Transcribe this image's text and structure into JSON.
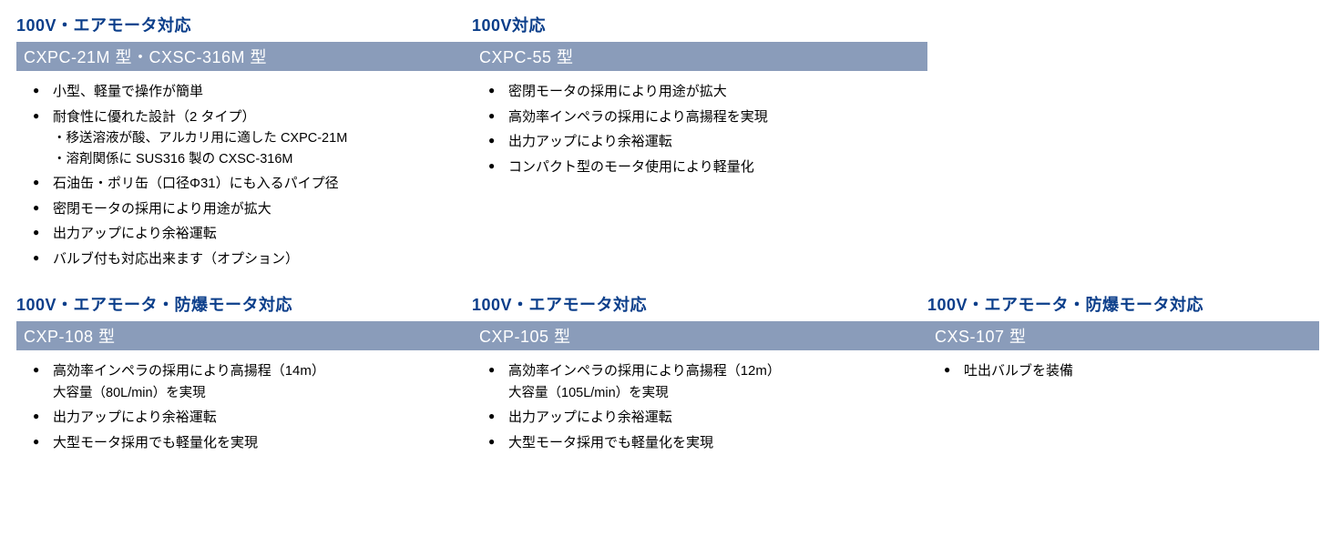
{
  "colors": {
    "heading": "#0b3e8a",
    "bar_bg": "#8a9cba",
    "bar_text": "#ffffff",
    "body_text": "#000000",
    "background": "#ffffff"
  },
  "row1": {
    "col1": {
      "heading": "100V・エアモータ対応",
      "model": "CXPC-21M 型・CXSC-316M 型",
      "items": [
        {
          "text": "小型、軽量で操作が簡単"
        },
        {
          "text": "耐食性に優れた設計（2 タイプ）",
          "sub1": "・移送溶液が酸、アルカリ用に適した CXPC-21M",
          "sub2": "・溶剤関係に SUS316 製の CXSC-316M"
        },
        {
          "text": "石油缶・ポリ缶（口径Φ31）にも入るパイプ径"
        },
        {
          "text": "密閉モータの採用により用途が拡大"
        },
        {
          "text": "出力アップにより余裕運転"
        },
        {
          "text": "バルブ付も対応出来ます（オプション）"
        }
      ]
    },
    "col2": {
      "heading": "100V対応",
      "model": "CXPC-55 型",
      "items": [
        {
          "text": "密閉モータの採用により用途が拡大"
        },
        {
          "text": "高効率インペラの採用により高揚程を実現"
        },
        {
          "text": "出力アップにより余裕運転"
        },
        {
          "text": "コンパクト型のモータ使用により軽量化"
        }
      ]
    }
  },
  "row2": {
    "col1": {
      "heading": "100V・エアモータ・防爆モータ対応",
      "model": "CXP-108 型",
      "items": [
        {
          "text": "高効率インペラの採用により高揚程（14m）",
          "sub1": "大容量（80L/min）を実現"
        },
        {
          "text": "出力アップにより余裕運転"
        },
        {
          "text": "大型モータ採用でも軽量化を実現"
        }
      ]
    },
    "col2": {
      "heading": "100V・エアモータ対応",
      "model": "CXP-105 型",
      "items": [
        {
          "text": "高効率インペラの採用により高揚程（12m）",
          "sub1": "大容量（105L/min）を実現"
        },
        {
          "text": "出力アップにより余裕運転"
        },
        {
          "text": "大型モータ採用でも軽量化を実現"
        }
      ]
    },
    "col3": {
      "heading": "100V・エアモータ・防爆モータ対応",
      "model": "CXS-107 型",
      "items": [
        {
          "text": "吐出バルブを装備"
        }
      ]
    }
  }
}
